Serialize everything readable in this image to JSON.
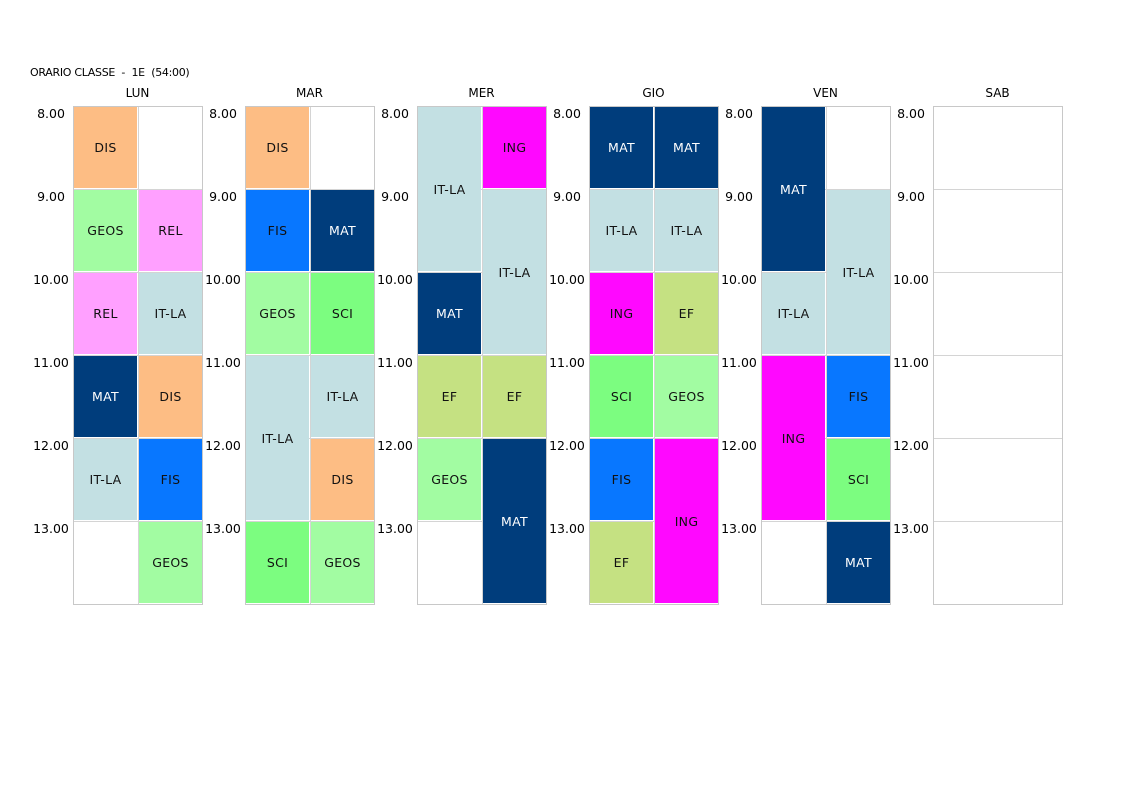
{
  "title": "ORARIO CLASSE  -  1E  (54:00)",
  "times": [
    "8.00",
    "9.00",
    "10.00",
    "11.00",
    "12.00",
    "13.00"
  ],
  "subject_colors": {
    "DIS": {
      "bg": "#fdbd84",
      "fg": "#111111"
    },
    "GEOS": {
      "bg": "#a2fca2",
      "fg": "#111111"
    },
    "REL": {
      "bg": "#ffa0ff",
      "fg": "#111111"
    },
    "IT-LA": {
      "bg": "#c3e0e3",
      "fg": "#111111"
    },
    "MAT": {
      "bg": "#003d7c",
      "fg": "#ffffff"
    },
    "FIS": {
      "bg": "#0877ff",
      "fg": "#111111"
    },
    "SCI": {
      "bg": "#7cfd80",
      "fg": "#111111"
    },
    "ING": {
      "bg": "#ff08ff",
      "fg": "#111111"
    },
    "EF": {
      "bg": "#c5e182",
      "fg": "#111111"
    }
  },
  "days": [
    {
      "name": "LUN",
      "lessons": [
        {
          "subject": "DIS",
          "col": 0,
          "start": 0,
          "span": 1
        },
        {
          "subject": "GEOS",
          "col": 0,
          "start": 1,
          "span": 1
        },
        {
          "subject": "REL",
          "col": 1,
          "start": 1,
          "span": 1
        },
        {
          "subject": "REL",
          "col": 0,
          "start": 2,
          "span": 1
        },
        {
          "subject": "IT-LA",
          "col": 1,
          "start": 2,
          "span": 1
        },
        {
          "subject": "MAT",
          "col": 0,
          "start": 3,
          "span": 1
        },
        {
          "subject": "DIS",
          "col": 1,
          "start": 3,
          "span": 1
        },
        {
          "subject": "IT-LA",
          "col": 0,
          "start": 4,
          "span": 1
        },
        {
          "subject": "FIS",
          "col": 1,
          "start": 4,
          "span": 1
        },
        {
          "subject": "GEOS",
          "col": 1,
          "start": 5,
          "span": 1
        }
      ]
    },
    {
      "name": "MAR",
      "lessons": [
        {
          "subject": "DIS",
          "col": 0,
          "start": 0,
          "span": 1
        },
        {
          "subject": "FIS",
          "col": 0,
          "start": 1,
          "span": 1
        },
        {
          "subject": "MAT",
          "col": 1,
          "start": 1,
          "span": 1
        },
        {
          "subject": "GEOS",
          "col": 0,
          "start": 2,
          "span": 1
        },
        {
          "subject": "SCI",
          "col": 1,
          "start": 2,
          "span": 1
        },
        {
          "subject": "IT-LA",
          "col": 0,
          "start": 3,
          "span": 2
        },
        {
          "subject": "IT-LA",
          "col": 1,
          "start": 3,
          "span": 1
        },
        {
          "subject": "DIS",
          "col": 1,
          "start": 4,
          "span": 1
        },
        {
          "subject": "SCI",
          "col": 0,
          "start": 5,
          "span": 1
        },
        {
          "subject": "GEOS",
          "col": 1,
          "start": 5,
          "span": 1
        }
      ]
    },
    {
      "name": "MER",
      "lessons": [
        {
          "subject": "IT-LA",
          "col": 0,
          "start": 0,
          "span": 2
        },
        {
          "subject": "ING",
          "col": 1,
          "start": 0,
          "span": 1
        },
        {
          "subject": "IT-LA",
          "col": 1,
          "start": 1,
          "span": 2
        },
        {
          "subject": "MAT",
          "col": 0,
          "start": 2,
          "span": 1
        },
        {
          "subject": "EF",
          "col": 0,
          "start": 3,
          "span": 1
        },
        {
          "subject": "EF",
          "col": 1,
          "start": 3,
          "span": 1
        },
        {
          "subject": "GEOS",
          "col": 0,
          "start": 4,
          "span": 1
        },
        {
          "subject": "MAT",
          "col": 1,
          "start": 4,
          "span": 2
        }
      ]
    },
    {
      "name": "GIO",
      "lessons": [
        {
          "subject": "MAT",
          "col": 0,
          "start": 0,
          "span": 1
        },
        {
          "subject": "MAT",
          "col": 1,
          "start": 0,
          "span": 1
        },
        {
          "subject": "IT-LA",
          "col": 0,
          "start": 1,
          "span": 1
        },
        {
          "subject": "IT-LA",
          "col": 1,
          "start": 1,
          "span": 1
        },
        {
          "subject": "ING",
          "col": 0,
          "start": 2,
          "span": 1
        },
        {
          "subject": "EF",
          "col": 1,
          "start": 2,
          "span": 1
        },
        {
          "subject": "SCI",
          "col": 0,
          "start": 3,
          "span": 1
        },
        {
          "subject": "GEOS",
          "col": 1,
          "start": 3,
          "span": 1
        },
        {
          "subject": "FIS",
          "col": 0,
          "start": 4,
          "span": 1
        },
        {
          "subject": "ING",
          "col": 1,
          "start": 4,
          "span": 2
        },
        {
          "subject": "EF",
          "col": 0,
          "start": 5,
          "span": 1
        }
      ]
    },
    {
      "name": "VEN",
      "lessons": [
        {
          "subject": "MAT",
          "col": 0,
          "start": 0,
          "span": 2
        },
        {
          "subject": "IT-LA",
          "col": 1,
          "start": 1,
          "span": 2
        },
        {
          "subject": "IT-LA",
          "col": 0,
          "start": 2,
          "span": 1
        },
        {
          "subject": "ING",
          "col": 0,
          "start": 3,
          "span": 2
        },
        {
          "subject": "FIS",
          "col": 1,
          "start": 3,
          "span": 1
        },
        {
          "subject": "SCI",
          "col": 1,
          "start": 4,
          "span": 1
        },
        {
          "subject": "MAT",
          "col": 1,
          "start": 5,
          "span": 1
        }
      ]
    },
    {
      "name": "SAB",
      "lessons": []
    }
  ]
}
